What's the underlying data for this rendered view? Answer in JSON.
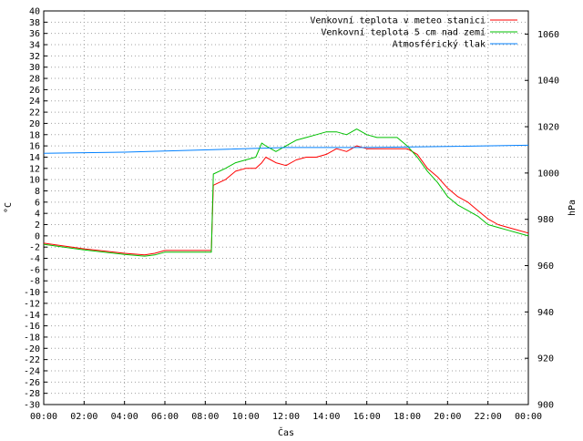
{
  "chart_data": {
    "type": "line",
    "xlabel": "Čas",
    "ylabel_left": "°C",
    "ylabel_right": "hPa",
    "x_ticks": [
      "00:00",
      "02:00",
      "04:00",
      "06:00",
      "08:00",
      "10:00",
      "12:00",
      "14:00",
      "16:00",
      "18:00",
      "20:00",
      "22:00",
      "00:00"
    ],
    "xlim_hours": [
      0,
      24
    ],
    "ylim_left": [
      -30,
      40
    ],
    "y_left_step": 2,
    "ylim_right": [
      900,
      1070
    ],
    "y_right_ticks": [
      900,
      920,
      940,
      960,
      980,
      1000,
      1020,
      1040,
      1060
    ],
    "grid": true,
    "legend_position": "top-right",
    "series": [
      {
        "name": "Venkovní teplota v meteo stanici",
        "axis": "left",
        "color": "#ff0000",
        "x": [
          0,
          1,
          2,
          3,
          4,
          5,
          5.5,
          6,
          7,
          8,
          8.3,
          8.4,
          9,
          9.5,
          10,
          10.5,
          10.8,
          11,
          11.5,
          12,
          12.5,
          13,
          13.5,
          14,
          14.5,
          15,
          15.5,
          16,
          16.5,
          17,
          17.5,
          18,
          18.5,
          19,
          19.5,
          20,
          20.5,
          21,
          21.5,
          22,
          22.5,
          23,
          24
        ],
        "y": [
          -1.3,
          -1.8,
          -2.3,
          -2.7,
          -3.1,
          -3.4,
          -3.1,
          -2.6,
          -2.6,
          -2.6,
          -2.6,
          9,
          10,
          11.5,
          12,
          12,
          13,
          14,
          13,
          12.5,
          13.5,
          14,
          14,
          14.5,
          15.5,
          15,
          16,
          15.5,
          15.5,
          15.5,
          15.5,
          15.5,
          14.5,
          12,
          10.5,
          8.5,
          7,
          6,
          4.5,
          3,
          2,
          1.5,
          0.5
        ]
      },
      {
        "name": "Venkovní teplota 5 cm nad zemí",
        "axis": "left",
        "color": "#00c000",
        "x": [
          0,
          1,
          2,
          3,
          4,
          5,
          5.5,
          6,
          7,
          8,
          8.3,
          8.4,
          9,
          9.5,
          10,
          10.5,
          10.8,
          11,
          11.5,
          12,
          12.5,
          13,
          13.5,
          14,
          14.5,
          15,
          15.5,
          16,
          16.5,
          17,
          17.5,
          18,
          18.5,
          19,
          19.5,
          20,
          20.5,
          21,
          21.5,
          22,
          22.5,
          23,
          24
        ],
        "y": [
          -1.5,
          -2,
          -2.5,
          -2.9,
          -3.3,
          -3.6,
          -3.4,
          -2.9,
          -2.9,
          -2.9,
          -2.9,
          11,
          12,
          13,
          13.5,
          14,
          16.5,
          16,
          15,
          16,
          17,
          17.5,
          18,
          18.5,
          18.5,
          18,
          19,
          18,
          17.5,
          17.5,
          17.5,
          16,
          14,
          11.5,
          9.5,
          7,
          5.5,
          4.5,
          3.5,
          2,
          1.5,
          1,
          0
        ]
      },
      {
        "name": "Atmosférický tlak",
        "axis": "right",
        "color": "#0080ff",
        "x": [
          0,
          4,
          8,
          12,
          16,
          20,
          24
        ],
        "y": [
          1008.5,
          1009,
          1010,
          1011,
          1011,
          1011.5,
          1012
        ]
      }
    ]
  }
}
